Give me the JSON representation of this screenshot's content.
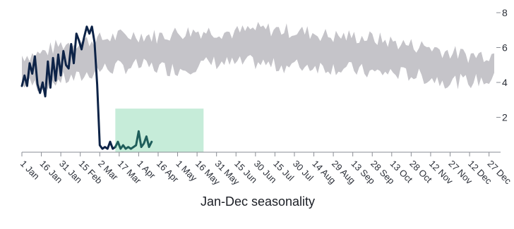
{
  "chart_data": {
    "type": "line",
    "title": "",
    "xlabel": "Jan-Dec seasonality",
    "ylabel": "",
    "xlim": [
      1,
      365
    ],
    "ylim": [
      0,
      8
    ],
    "yticks": [
      2,
      4,
      6,
      8
    ],
    "xticks": [
      {
        "day": 1,
        "label": "1 Jan"
      },
      {
        "day": 16,
        "label": "16 Jan"
      },
      {
        "day": 31,
        "label": "31 Jan"
      },
      {
        "day": 46,
        "label": "15 Feb"
      },
      {
        "day": 61,
        "label": "2 Mar"
      },
      {
        "day": 76,
        "label": "17 Mar"
      },
      {
        "day": 91,
        "label": "1 Apr"
      },
      {
        "day": 106,
        "label": "16 Apr"
      },
      {
        "day": 121,
        "label": "1 May"
      },
      {
        "day": 136,
        "label": "16 May"
      },
      {
        "day": 151,
        "label": "31 May"
      },
      {
        "day": 166,
        "label": "15 Jun"
      },
      {
        "day": 181,
        "label": "30 Jun"
      },
      {
        "day": 196,
        "label": "15 Jul"
      },
      {
        "day": 211,
        "label": "30 Jul"
      },
      {
        "day": 226,
        "label": "14 Aug"
      },
      {
        "day": 241,
        "label": "29 Aug"
      },
      {
        "day": 256,
        "label": "13 Sep"
      },
      {
        "day": 271,
        "label": "28 Sep"
      },
      {
        "day": 286,
        "label": "13 Oct"
      },
      {
        "day": 301,
        "label": "28 Oct"
      },
      {
        "day": 316,
        "label": "12 Nov"
      },
      {
        "day": 331,
        "label": "27 Nov"
      },
      {
        "day": 346,
        "label": "12 Dec"
      },
      {
        "day": 361,
        "label": "27 Dec"
      }
    ],
    "colors": {
      "band": "#c5c4c9",
      "series": "#0d2347",
      "series_highlight": "#1f5e5b",
      "highlight_fill": "#c6ecd9"
    },
    "highlight_region": {
      "x_start": 73,
      "x_end": 141,
      "y_start": 0,
      "y_end": 2.5
    },
    "band": {
      "x": [
        1,
        15,
        30,
        45,
        60,
        75,
        90,
        105,
        120,
        135,
        150,
        165,
        180,
        195,
        210,
        225,
        240,
        255,
        270,
        285,
        300,
        315,
        330,
        345,
        365
      ],
      "low": [
        4.0,
        3.9,
        4.2,
        4.3,
        4.8,
        4.9,
        5.0,
        4.9,
        4.8,
        5.0,
        5.2,
        5.1,
        5.2,
        5.0,
        5.0,
        5.0,
        4.9,
        4.8,
        4.6,
        4.6,
        4.5,
        4.3,
        4.1,
        4.1,
        4.2
      ],
      "high": [
        5.5,
        5.6,
        6.1,
        6.3,
        6.4,
        6.6,
        6.7,
        6.6,
        6.8,
        6.9,
        6.9,
        6.8,
        7.0,
        7.0,
        6.9,
        6.8,
        6.6,
        6.6,
        6.5,
        6.3,
        6.1,
        6.0,
        5.7,
        5.5,
        5.6
      ]
    },
    "series": [
      {
        "x": [
          1,
          3,
          5,
          7,
          9,
          11,
          13,
          15,
          17,
          19,
          21,
          23,
          25,
          27,
          29,
          31,
          33,
          35,
          37,
          39,
          41,
          43,
          45,
          47,
          49,
          51,
          53,
          55,
          57,
          59,
          61,
          63,
          65,
          67,
          69,
          71,
          73
        ],
        "values": [
          3.8,
          4.4,
          3.8,
          5.1,
          4.5,
          5.5,
          3.9,
          3.4,
          4.0,
          3.2,
          5.2,
          3.7,
          5.4,
          4.1,
          5.6,
          4.4,
          5.8,
          5.0,
          4.8,
          6.2,
          5.1,
          6.8,
          6.4,
          5.9,
          6.6,
          7.2,
          6.8,
          7.2,
          6.3,
          3.9,
          0.4,
          0.2,
          0.3,
          0.2,
          0.6,
          0.2,
          0.3
        ]
      },
      {
        "x": [
          73,
          75,
          77,
          79,
          81,
          83,
          85,
          87,
          89,
          91,
          93,
          95,
          97,
          99,
          101
        ],
        "values": [
          0.3,
          0.6,
          0.2,
          0.4,
          0.2,
          0.3,
          0.2,
          0.3,
          0.4,
          1.2,
          0.3,
          0.5,
          0.9,
          0.3,
          0.6
        ]
      }
    ]
  }
}
